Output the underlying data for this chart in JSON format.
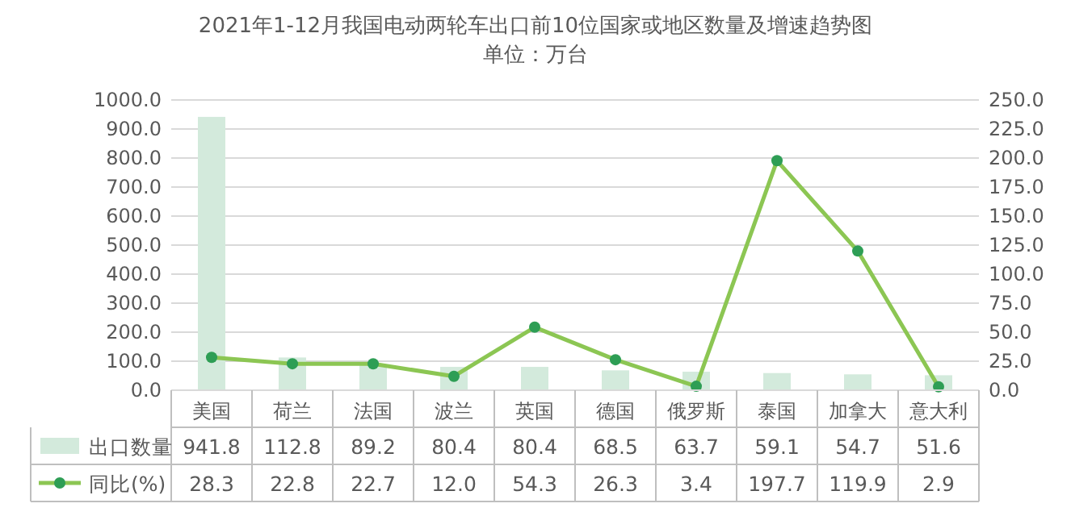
{
  "chart_data": {
    "type": "bar",
    "title": "2021年1-12月我国电动两轮车出口前10位国家或地区数量及增速趋势图",
    "subtitle": "单位：万台",
    "categories": [
      "美国",
      "荷兰",
      "法国",
      "波兰",
      "英国",
      "德国",
      "俄罗斯",
      "泰国",
      "加拿大",
      "意大利"
    ],
    "series": [
      {
        "name": "出口数量",
        "color": "#d3eadc",
        "values": [
          941.8,
          112.8,
          89.2,
          80.4,
          80.4,
          68.5,
          63.7,
          59.1,
          54.7,
          51.6
        ],
        "value_labels": [
          "941.8",
          "112.8",
          "89.2",
          "80.4",
          "80.4",
          "68.5",
          "63.7",
          "59.1",
          "54.7",
          "51.6"
        ]
      },
      {
        "name": "同比(%)",
        "type": "line",
        "axis": "y2",
        "color": "#8cc653",
        "marker": "circle",
        "values": [
          28.3,
          22.8,
          22.7,
          12.0,
          54.3,
          26.3,
          3.4,
          197.7,
          119.9,
          2.9
        ],
        "value_labels": [
          "28.3",
          "22.8",
          "22.7",
          "12.0",
          "54.3",
          "26.3",
          "3.4",
          "197.7",
          "119.9",
          "2.9"
        ]
      }
    ],
    "ylim": [
      0,
      1000
    ],
    "yticks": [
      {
        "value": 0,
        "label": "0.0"
      },
      {
        "value": 100,
        "label": "100.0"
      },
      {
        "value": 200,
        "label": "200.0"
      },
      {
        "value": 300,
        "label": "300.0"
      },
      {
        "value": 400,
        "label": "400.0"
      },
      {
        "value": 500,
        "label": "500.0"
      },
      {
        "value": 600,
        "label": "600.0"
      },
      {
        "value": 700,
        "label": "700.0"
      },
      {
        "value": 800,
        "label": "800.0"
      },
      {
        "value": 900,
        "label": "900.0"
      },
      {
        "value": 1000,
        "label": "1000.0"
      }
    ],
    "y2lim": [
      0,
      250
    ],
    "y2ticks": [
      {
        "value": 0,
        "label": "0.0"
      },
      {
        "value": 25,
        "label": "25.0"
      },
      {
        "value": 50,
        "label": "50.0"
      },
      {
        "value": 75,
        "label": "75.0"
      },
      {
        "value": 100,
        "label": "100.0"
      },
      {
        "value": 125,
        "label": "125.0"
      },
      {
        "value": 150,
        "label": "150.0"
      },
      {
        "value": 175,
        "label": "175.0"
      },
      {
        "value": 200,
        "label": "200.0"
      },
      {
        "value": 225,
        "label": "225.0"
      },
      {
        "value": 250,
        "label": "250.0"
      }
    ],
    "grid": "y",
    "legend": "bottom"
  }
}
